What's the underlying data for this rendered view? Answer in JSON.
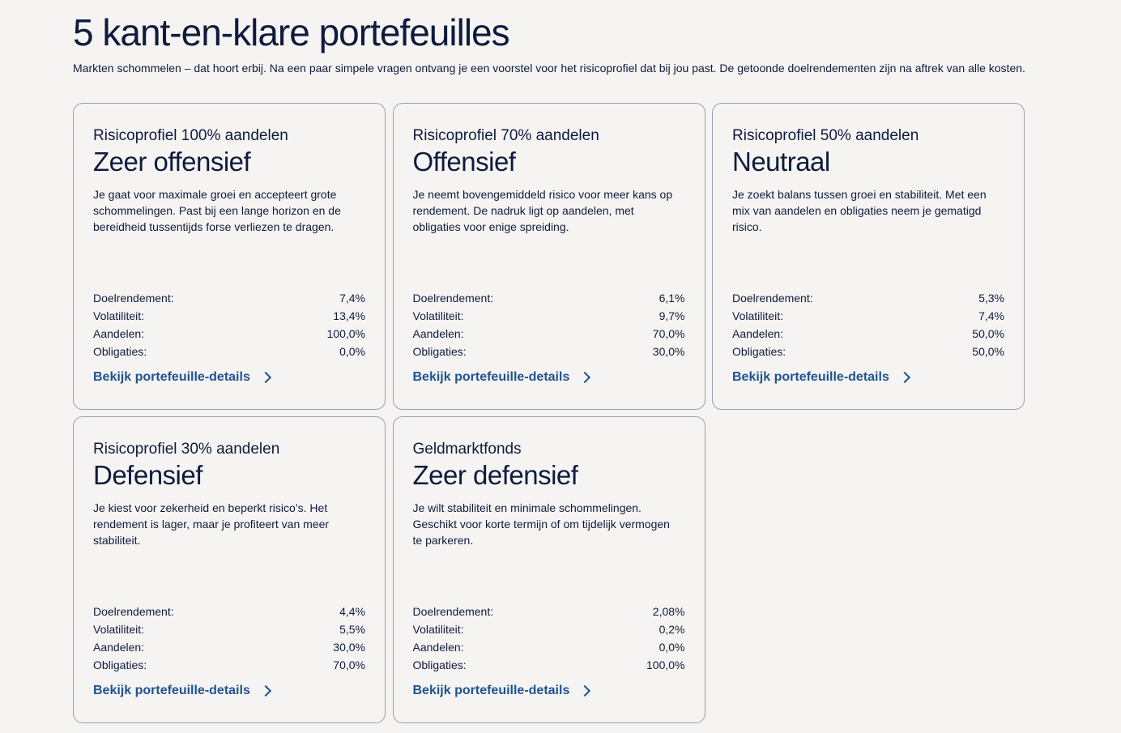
{
  "header": {
    "title": "5 kant-en-klare portefeuilles",
    "intro": "Markten schommelen – dat hoort erbij. Na een paar simpele vragen ontvang je een voorstel voor het risicoprofiel dat bij jou past. De getoonde doelrendementen zijn na aftrek van alle kosten."
  },
  "labels": {
    "doelrendement": "Doelrendement:",
    "volatiliteit": "Volatiliteit:",
    "aandelen": "Aandelen:",
    "obligaties": "Obligaties:",
    "details_link": "Bekijk portefeuille-details"
  },
  "cards": [
    {
      "kicker": "Risicoprofiel 100% aandelen",
      "name": "Zeer offensief",
      "description": "Je gaat voor maximale groei en accepteert grote schommelingen. Past bij een lange horizon en de bereidheid tussentijds forse verliezen te dragen.",
      "doelrendement": "7,4%",
      "volatiliteit": "13,4%",
      "aandelen": "100,0%",
      "obligaties": "0,0%"
    },
    {
      "kicker": "Risicoprofiel 70% aandelen",
      "name": "Offensief",
      "description": "Je neemt bovengemiddeld risico voor meer kans op rendement. De nadruk ligt op aandelen, met obligaties voor enige spreiding.",
      "doelrendement": "6,1%",
      "volatiliteit": "9,7%",
      "aandelen": "70,0%",
      "obligaties": "30,0%"
    },
    {
      "kicker": "Risicoprofiel 50% aandelen",
      "name": "Neutraal",
      "description": "Je zoekt balans tussen groei en stabiliteit. Met een mix van aandelen en obligaties neem je gematigd risico.",
      "doelrendement": "5,3%",
      "volatiliteit": "7,4%",
      "aandelen": "50,0%",
      "obligaties": "50,0%"
    },
    {
      "kicker": "Risicoprofiel 30% aandelen",
      "name": "Defensief",
      "description": "Je kiest voor zekerheid en beperkt risico’s. Het rendement is lager, maar je profiteert van meer stabiliteit.",
      "doelrendement": "4,4%",
      "volatiliteit": "5,5%",
      "aandelen": "30,0%",
      "obligaties": "70,0%"
    },
    {
      "kicker": "Geldmarktfonds",
      "name": "Zeer defensief",
      "description": "Je wilt stabiliteit en minimale schommelingen. Geschikt voor korte termijn of om tijdelijk vermogen te parkeren.",
      "doelrendement": "2,08%",
      "volatiliteit": "0,2%",
      "aandelen": "0,0%",
      "obligaties": "100,0%"
    }
  ],
  "colors": {
    "background": "#f5f4f2",
    "text": "#0f1b3d",
    "link": "#1e5391",
    "card_border": "#9aa0ad"
  },
  "icons": {
    "link_icon": "chevron-right-icon"
  }
}
